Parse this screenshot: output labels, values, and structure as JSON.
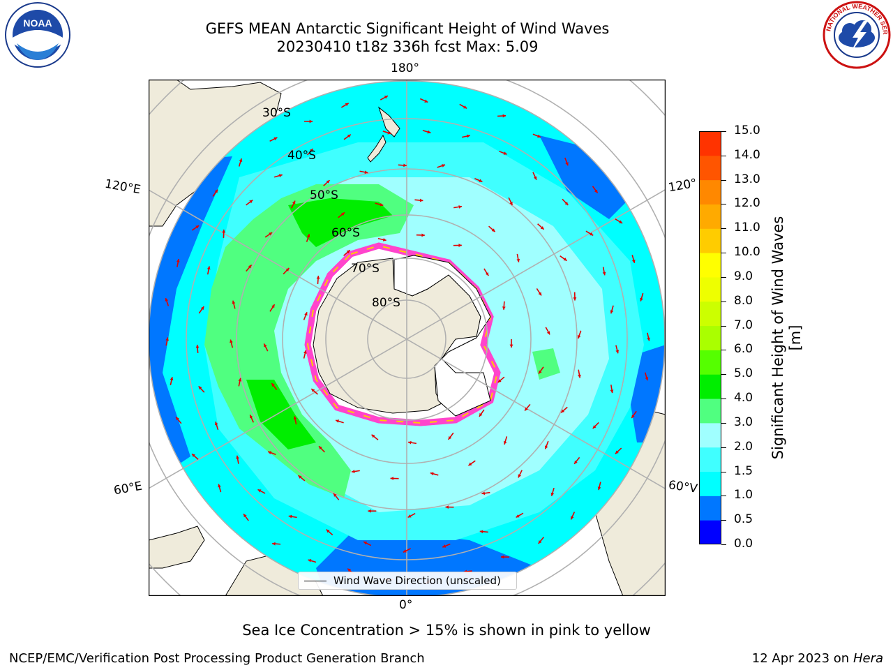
{
  "title": {
    "line1": "GEFS MEAN Antarctic Significant Height of Wind Waves",
    "line2": "20230410 t18z 336h fcst   Max: 5.09"
  },
  "map": {
    "projection": "south-polar-stereographic",
    "longitude_labels": [
      "180°",
      "120°E",
      "120°",
      "60°E",
      "60°V",
      "0°"
    ],
    "latitude_labels": [
      "30°S",
      "40°S",
      "50°S",
      "60°S",
      "70°S",
      "80°S"
    ],
    "legend_label": "Wind Wave Direction (unscaled)",
    "arrow_color": "#e00000"
  },
  "colorbar": {
    "label": "Significant Height of Wind Waves [m]",
    "ticks": [
      "0.0",
      "0.5",
      "1.0",
      "1.5",
      "2.0",
      "3.0",
      "4.0",
      "5.0",
      "6.0",
      "7.0",
      "8.0",
      "9.0",
      "10.0",
      "11.0",
      "12.0",
      "13.0",
      "14.0",
      "15.0"
    ],
    "colors": [
      "#0000ff",
      "#0077ff",
      "#00ffff",
      "#40ffff",
      "#a0ffff",
      "#50ff80",
      "#00ee00",
      "#55ff00",
      "#aaff00",
      "#ccff00",
      "#eeff00",
      "#ffff00",
      "#ffcc00",
      "#ffaa00",
      "#ff8800",
      "#ff5500",
      "#ff3300",
      "#ff0000"
    ]
  },
  "notes": {
    "ice": "Sea Ice Concentration > 15% is shown in pink to yellow",
    "footer_left": "NCEP/EMC/Verification Post Processing Product Generation Branch",
    "footer_date": "12 Apr 2023 on",
    "footer_machine": "Hera"
  },
  "logos": {
    "noaa_text": "NOAA",
    "nws_text": "NATIONAL WEATHER SERVICE"
  }
}
